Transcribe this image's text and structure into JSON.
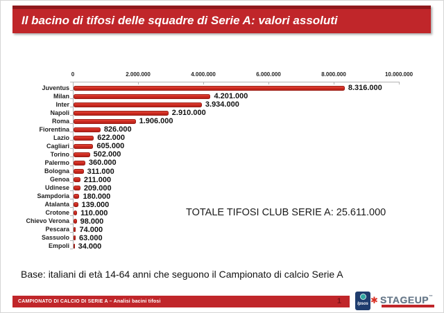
{
  "title": "Il bacino di tifosi delle squadre di Serie A: valori assoluti",
  "chart_data": {
    "type": "bar",
    "orientation": "horizontal",
    "title": "Il bacino di tifosi delle squadre di Serie A: valori assoluti",
    "categories": [
      "Juventus",
      "Milan",
      "Inter",
      "Napoli",
      "Roma",
      "Fiorentina",
      "Lazio",
      "Cagliari",
      "Torino",
      "Palermo",
      "Bologna",
      "Genoa",
      "Udinese",
      "Sampdoria",
      "Atalanta",
      "Crotone",
      "Chievo Verona",
      "Pescara",
      "Sassuolo",
      "Empoli"
    ],
    "values": [
      8316000,
      4201000,
      3934000,
      2910000,
      1906000,
      826000,
      622000,
      605000,
      502000,
      360000,
      311000,
      211000,
      209000,
      180000,
      139000,
      110000,
      98000,
      74000,
      63000,
      34000
    ],
    "value_labels": [
      "8.316.000",
      "4.201.000",
      "3.934.000",
      "2.910.000",
      "1.906.000",
      "826.000",
      "622.000",
      "605.000",
      "502.000",
      "360.000",
      "311.000",
      "211.000",
      "209.000",
      "180.000",
      "139.000",
      "110.000",
      "98.000",
      "74.000",
      "63.000",
      "34.000"
    ],
    "xlim": [
      0,
      10000000
    ],
    "x_ticks": [
      0,
      2000000,
      4000000,
      6000000,
      8000000,
      10000000
    ],
    "x_tick_labels": [
      "0",
      "2.000.000",
      "4.000.000",
      "6.000.000",
      "8.000.000",
      "10.000.000"
    ],
    "grid": false,
    "legend": false,
    "bar_color": "#cf2a21",
    "annotation": "TOTALE TIFOSI CLUB SERIE A: 25.611.000"
  },
  "total_label": "TOTALE TIFOSI CLUB SERIE A: 25.611.000",
  "base_note": "Base: italiani di età 14-64 anni che seguono il Campionato di calcio Serie A",
  "footer": {
    "text": "CAMPIONATO DI CALCIO DI SERIE A – Analisi bacini tifosi",
    "page": "1"
  },
  "logos": {
    "ipsos": "Ipsos",
    "stageup": "STAGEUP",
    "stageup_mark": "™"
  },
  "colors": {
    "accent_red": "#c0262a",
    "accent_red_dark": "#8f181c",
    "bar_red": "#cf2a21",
    "page_number_red": "#7a1216",
    "ipsos_navy": "#1f3d6e",
    "ipsos_teal": "#2fa8a1",
    "stageup_gray": "#68798a"
  }
}
